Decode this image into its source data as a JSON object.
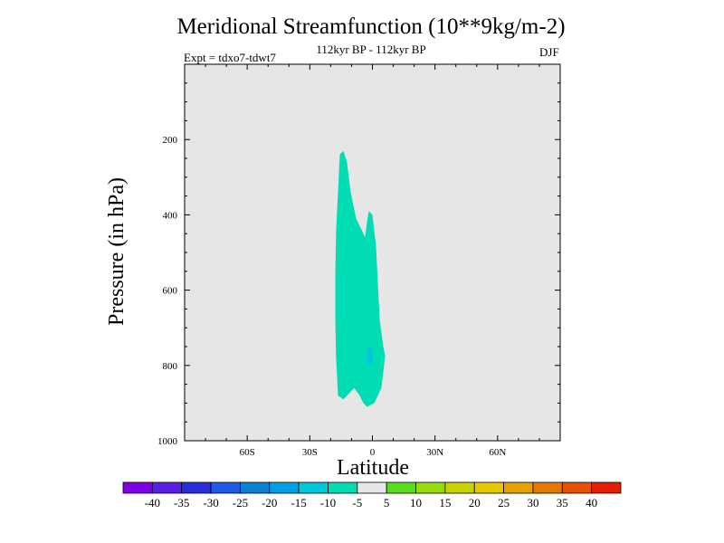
{
  "chart_data": {
    "type": "contour",
    "title": "Meridional Streamfunction (10**9kg/m-2)",
    "subtitle": "112kyr BP - 112kyr BP",
    "experiment_label": "Expt = tdxo7-tdwt7",
    "season_label": "DJF",
    "xlabel": "Latitude",
    "ylabel": "Pressure (in hPa)",
    "xlim": [
      -90,
      90
    ],
    "ylim": [
      1000,
      0
    ],
    "y_inverted": true,
    "x_ticks": [
      {
        "value": -60,
        "label": "60S"
      },
      {
        "value": -30,
        "label": "30S"
      },
      {
        "value": 0,
        "label": "0"
      },
      {
        "value": 30,
        "label": "30N"
      },
      {
        "value": 60,
        "label": "60N"
      }
    ],
    "y_ticks": [
      {
        "value": 200,
        "label": "200"
      },
      {
        "value": 400,
        "label": "400"
      },
      {
        "value": 600,
        "label": "600"
      },
      {
        "value": 800,
        "label": "800"
      },
      {
        "value": 1000,
        "label": "1000"
      }
    ],
    "background_fill": "#e6e6e6",
    "regions": [
      {
        "level_range": [
          -10,
          -5
        ],
        "color": "#00dcb4",
        "boundary": [
          [
            -15.6,
            240
          ],
          [
            -13.9,
            230
          ],
          [
            -12.2,
            260
          ],
          [
            -10.4,
            340
          ],
          [
            -7.8,
            410
          ],
          [
            -5.2,
            440
          ],
          [
            -3.5,
            460
          ],
          [
            -2.6,
            420
          ],
          [
            -1.7,
            390
          ],
          [
            0.0,
            400
          ],
          [
            1.7,
            480
          ],
          [
            2.6,
            580
          ],
          [
            3.5,
            680
          ],
          [
            5.2,
            750
          ],
          [
            6.1,
            775
          ],
          [
            4.3,
            860
          ],
          [
            2.6,
            880
          ],
          [
            0.9,
            900
          ],
          [
            -0.9,
            905
          ],
          [
            -2.6,
            910
          ],
          [
            -4.3,
            900
          ],
          [
            -6.1,
            880
          ],
          [
            -8.7,
            860
          ],
          [
            -11.3,
            875
          ],
          [
            -13.9,
            890
          ],
          [
            -16.5,
            880
          ],
          [
            -17.4,
            780
          ],
          [
            -17.8,
            680
          ],
          [
            -17.8,
            560
          ],
          [
            -17.4,
            440
          ],
          [
            -16.5,
            340
          ]
        ]
      },
      {
        "level_range": [
          -15,
          -10
        ],
        "color": "#00c8dc",
        "boundary": [
          [
            -2.6,
            760
          ],
          [
            -1.3,
            750
          ],
          [
            0.0,
            760
          ],
          [
            0.4,
            785
          ],
          [
            -0.9,
            800
          ],
          [
            -2.2,
            795
          ],
          [
            -3.0,
            780
          ]
        ]
      }
    ],
    "colorbar": {
      "levels": [
        -40,
        -35,
        -30,
        -25,
        -20,
        -15,
        -10,
        -5,
        5,
        10,
        15,
        20,
        25,
        30,
        35,
        40
      ],
      "labels": [
        "-40",
        "-35",
        "-30",
        "-25",
        "-20",
        "-15",
        "-10",
        "-5",
        "5",
        "10",
        "15",
        "20",
        "25",
        "30",
        "35",
        "40"
      ],
      "colors": [
        "#8000e8",
        "#5a1ee6",
        "#2a2ddc",
        "#1e5ae6",
        "#0a82d4",
        "#00a0e6",
        "#00c8dc",
        "#00dcb4",
        "#e6e6e6",
        "#5adc1e",
        "#96dc0a",
        "#c8d200",
        "#e6c800",
        "#e6a000",
        "#e67800",
        "#e65000",
        "#e61e00"
      ]
    }
  }
}
